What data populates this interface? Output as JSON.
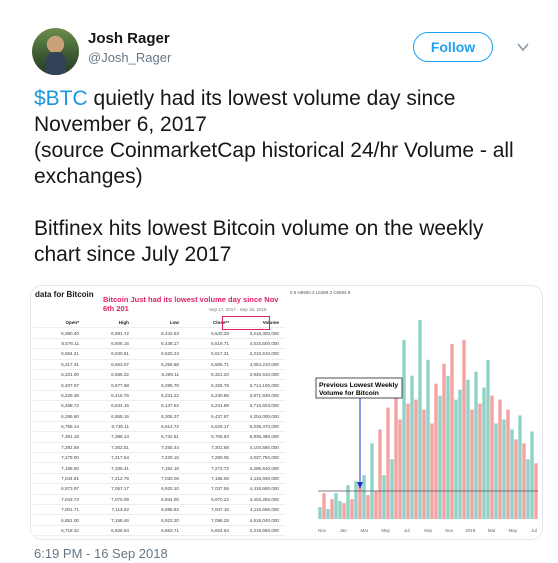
{
  "user": {
    "display_name": "Josh Rager",
    "handle": "@Josh_Rager"
  },
  "follow_label": "Follow",
  "tweet": {
    "paragraph1_cashtag": "$BTC",
    "paragraph1_rest": " quietly had its lowest volume day since November 6, 2017\n(source CoinmarketCap historical 24/hr Volume - all exchanges)",
    "paragraph2": "Bitfinex hits lowest Bitcoin volume on the weekly chart since July 2017"
  },
  "media_table": {
    "title": "data for Bitcoin",
    "headline": "Bitcoin Just had its lowest volume day since Nov 6th 201",
    "subdate": "Sep 17, 2017 - Sep 16, 2018",
    "headers": [
      "Open*",
      "High",
      "Low",
      "Close**",
      "Volume"
    ],
    "rows": [
      [
        "6,380.40",
        "6,591.72",
        "6,442.53",
        "6,540.28",
        "3,216,300,000"
      ],
      [
        "6,576.11",
        "6,606.15",
        "6,438.17",
        "6,519.71",
        "4,015,500,000"
      ],
      [
        "6,584.21",
        "6,630.51",
        "6,520.24",
        "6,517.31",
        "4,210,610,000"
      ],
      [
        "6,317.31",
        "6,563.07",
        "6,256.68",
        "6,505.71",
        "4,054,210,000"
      ],
      [
        "6,331.00",
        "6,566.32",
        "6,289.11",
        "6,321.20",
        "3,945,910,000"
      ],
      [
        "6,407.07",
        "6,577.68",
        "6,285.78",
        "6,326.78",
        "3,714,100,000"
      ],
      [
        "6,229.38",
        "6,416.76",
        "6,231.22",
        "6,230.88",
        "3,871,930,000"
      ],
      [
        "6,468.72",
        "6,634.15",
        "6,137.52",
        "6,231.88",
        "3,716,603,000"
      ],
      [
        "6,295.60",
        "6,558.15",
        "6,306.37",
        "6,437.87",
        "4,204,000,000"
      ],
      [
        "6,755.14",
        "6,735.11",
        "6,514.72",
        "6,529.17",
        "5,039,470,000"
      ],
      [
        "7,361.18",
        "7,388.13",
        "6,732.81",
        "6,705.63",
        "5,835,480,000"
      ],
      [
        "7,292.59",
        "7,302.51",
        "7,255.44",
        "7,301.68",
        "4,104,580,000"
      ],
      [
        "7,279.00",
        "7,317.54",
        "7,230.15",
        "7,280.05",
        "4,037,750,000"
      ],
      [
        "7,186.50",
        "7,335.41",
        "7,152.16",
        "7,273.72",
        "4,296,540,000"
      ],
      [
        "7,044.81",
        "7,212.79",
        "7,030.06",
        "7,168.06",
        "4,116,660,000"
      ],
      [
        "6,973.97",
        "7,067.17",
        "6,920.10",
        "7,037.58",
        "4,418,660,000"
      ],
      [
        "7,043.73",
        "7,070.09",
        "6,934.00",
        "6,970.22",
        "4,403,250,000"
      ],
      [
        "7,001.71",
        "7,113.32",
        "6,885.82",
        "7,047.16",
        "4,115,660,000"
      ],
      [
        "6,851.00",
        "7,158.46",
        "6,922.20",
        "7,096.28",
        "4,616,040,000"
      ],
      [
        "6,718.32",
        "6,826.64",
        "6,663.71",
        "6,824.64",
        "4,219,660,000"
      ],
      [
        "6,764.64",
        "6,749.72",
        "6,630.73",
        "6,737.22",
        "3,225,300,000"
      ],
      [
        "6,719.95",
        "6,769.63",
        "6,720.96",
        "6,745.18",
        "3,319,600,000"
      ],
      [
        "6,661.52",
        "6,719.59",
        "6,616.64",
        "6,719.58",
        "3,257,820,000"
      ]
    ]
  },
  "media_chart": {
    "header": "0.5  H6950.3  L6489.3  C6594.9",
    "annotation": "Previous Lowest Weekly Volume for Bitcoin",
    "x_ticks": [
      "Nov",
      "Jan",
      "Mar",
      "May",
      "Jul",
      "Sep",
      "Nov",
      "2018",
      "Mar",
      "May",
      "Jul"
    ]
  },
  "chart_data": {
    "type": "bar",
    "title": "",
    "xlabel": "",
    "ylabel": "",
    "values": [
      6,
      13,
      5,
      10,
      13,
      9,
      8,
      17,
      10,
      19,
      18,
      22,
      12,
      38,
      14,
      45,
      22,
      56,
      30,
      70,
      50,
      90,
      58,
      72,
      60,
      100,
      55,
      80,
      48,
      68,
      62,
      78,
      72,
      88,
      60,
      65,
      90,
      70,
      55,
      74,
      58,
      66,
      80,
      62,
      48,
      60,
      50,
      55,
      45,
      40,
      52,
      38,
      30,
      44,
      28
    ],
    "directions": [
      "g",
      "r",
      "g",
      "r",
      "g",
      "g",
      "r",
      "g",
      "r",
      "g",
      "r",
      "g",
      "r",
      "g",
      "r",
      "r",
      "g",
      "r",
      "g",
      "r",
      "r",
      "g",
      "r",
      "g",
      "r",
      "g",
      "r",
      "g",
      "r",
      "r",
      "g",
      "r",
      "g",
      "r",
      "g",
      "g",
      "r",
      "g",
      "r",
      "g",
      "r",
      "g",
      "g",
      "r",
      "g",
      "r",
      "g",
      "r",
      "g",
      "r",
      "g",
      "r",
      "g",
      "g",
      "r"
    ],
    "colors": {
      "up": "#8fd3c7",
      "down": "#f4a3a3"
    }
  },
  "timestamp": "6:19 PM - 16 Sep 2018"
}
